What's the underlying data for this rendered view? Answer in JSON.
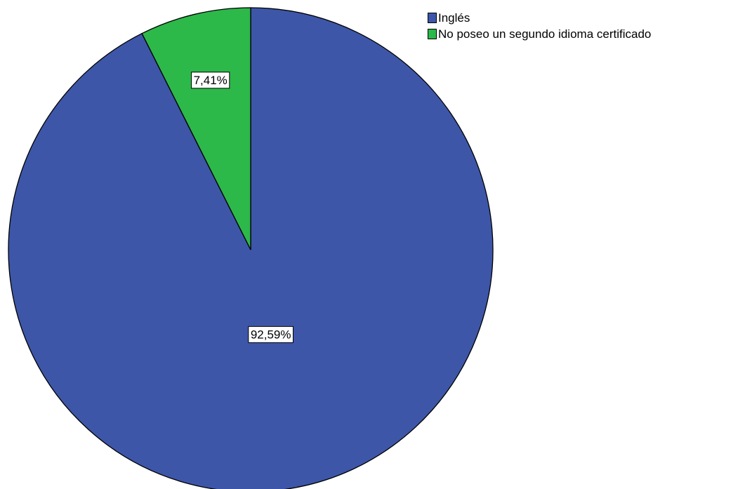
{
  "chart_data": {
    "type": "pie",
    "categories": [
      "Inglés",
      "No poseo un segundo idioma certificado"
    ],
    "values": [
      92.59,
      7.41
    ],
    "data_labels": [
      "92,59%",
      "7,41%"
    ],
    "colors": [
      "#3d56a8",
      "#2db84a"
    ],
    "start_angle": "12 o'clock",
    "direction": "clockwise",
    "legend_position": "top-right",
    "title": ""
  }
}
